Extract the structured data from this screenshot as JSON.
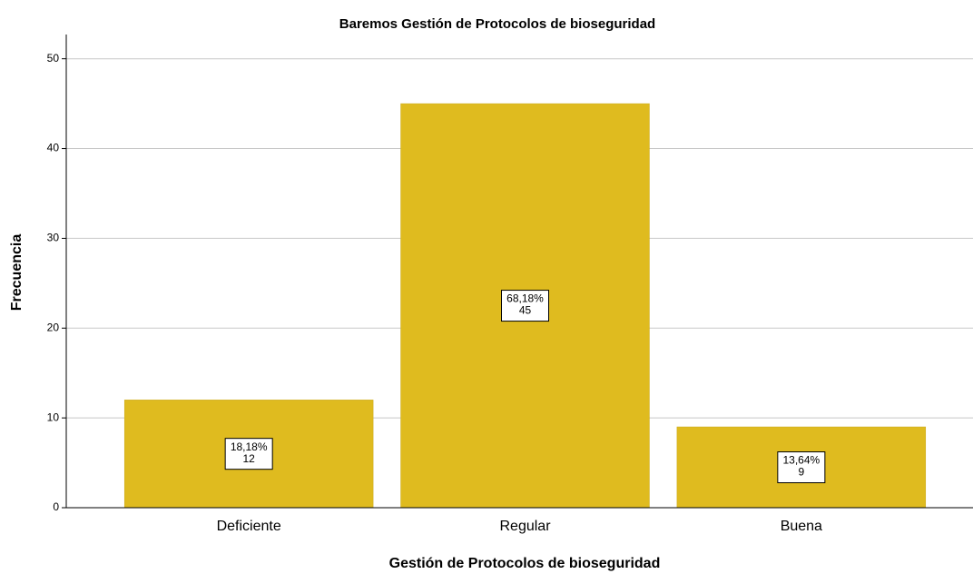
{
  "chart_data": {
    "type": "bar",
    "title": "Baremos  Gestión de Protocolos de bioseguridad",
    "x_label": "Gestión de Protocolos de bioseguridad",
    "y_label": "Frecuencia",
    "categories": [
      "Deficiente",
      "Regular",
      "Buena"
    ],
    "values": [
      12,
      45,
      9
    ],
    "percentages": [
      "18,18%",
      "68,18%",
      "13,64%"
    ],
    "color": "#dfbb1f",
    "ylim": [
      0,
      52.7
    ],
    "yticks": [
      0,
      10,
      20,
      30,
      40,
      50
    ],
    "grid": true
  }
}
